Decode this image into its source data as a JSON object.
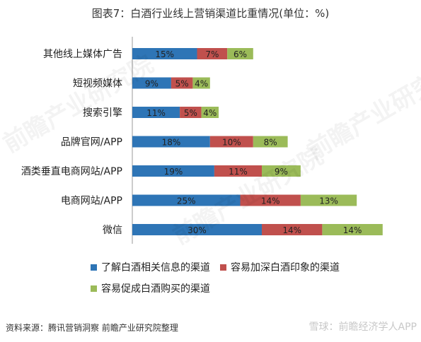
{
  "title": "图表7：白酒行业线上营销渠道比重情况(单位：%)",
  "source": "资料来源：腾讯营销洞察 前瞻产业研究院整理",
  "watermark": "雪球：前瞻经济学人APP",
  "background_watermark": "前瞻产业研究院",
  "chart_data": {
    "type": "bar",
    "orientation": "horizontal",
    "stacked": true,
    "categories": [
      "其他线上媒体广告",
      "短视频媒体",
      "搜索引擎",
      "品牌官网/APP",
      "酒类垂直电商网站/APP",
      "电商网站/APP",
      "微信"
    ],
    "series": [
      {
        "name": "了解白酒相关信息的渠道",
        "values": [
          15,
          9,
          11,
          18,
          19,
          25,
          30
        ],
        "labels": [
          "15%",
          "9%",
          "11%",
          "18%",
          "19%",
          "25%",
          "30%"
        ],
        "color": "#2e75b6"
      },
      {
        "name": "容易加深白酒印象的渠道",
        "values": [
          7,
          5,
          5,
          10,
          11,
          14,
          14
        ],
        "labels": [
          "7%",
          "5%",
          "5%",
          "10%",
          "11%",
          "14%",
          "14%"
        ],
        "color": "#c0504d"
      },
      {
        "name": "容易促成白酒购买的渠道",
        "values": [
          6,
          4,
          4,
          8,
          9,
          13,
          14
        ],
        "labels": [
          "6%",
          "4%",
          "4%",
          "8%",
          "9%",
          "13%",
          "14%"
        ],
        "color": "#9bbb59"
      }
    ],
    "legend_position": "bottom",
    "grid": false,
    "xlim": [
      0,
      65
    ]
  }
}
